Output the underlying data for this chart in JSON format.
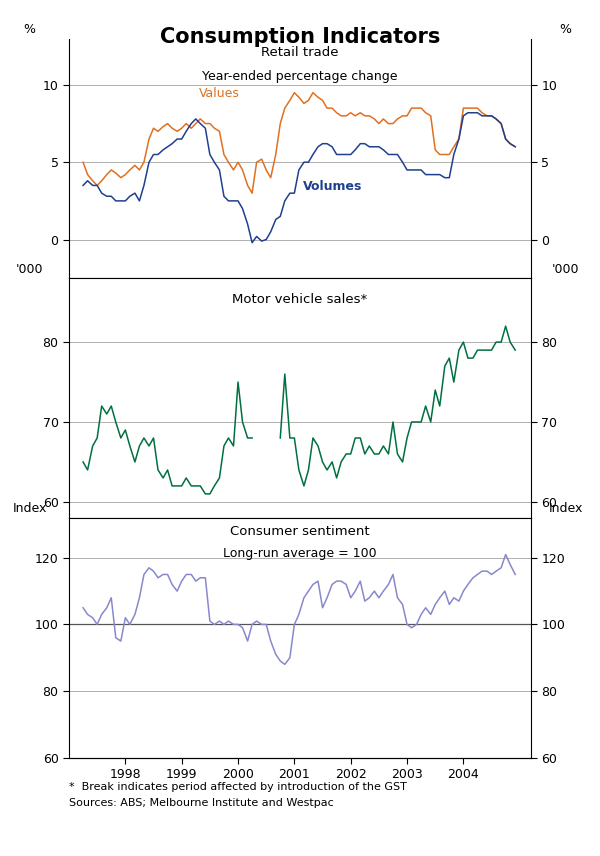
{
  "title": "Consumption Indicators",
  "title_fontsize": 15,
  "title_fontweight": "bold",
  "background_color": "#ffffff",
  "panel1": {
    "title_line1": "Retail trade",
    "title_line2": "Year-ended percentage change",
    "ylabel_left": "%",
    "ylabel_right": "%",
    "ylim": [
      -2.5,
      13
    ],
    "yticks": [
      0,
      5,
      10
    ],
    "gridlines": [
      0,
      5,
      10
    ],
    "values_color": "#E07020",
    "volumes_color": "#1F3F8F",
    "values_label": "Values",
    "volumes_label": "Volumes",
    "values_x": [
      1997.25,
      1997.33,
      1997.42,
      1997.5,
      1997.58,
      1997.67,
      1997.75,
      1997.83,
      1997.92,
      1998.0,
      1998.08,
      1998.17,
      1998.25,
      1998.33,
      1998.42,
      1998.5,
      1998.58,
      1998.67,
      1998.75,
      1998.83,
      1998.92,
      1999.0,
      1999.08,
      1999.17,
      1999.25,
      1999.33,
      1999.42,
      1999.5,
      1999.58,
      1999.67,
      1999.75,
      1999.83,
      1999.92,
      2000.0,
      2000.08,
      2000.17,
      2000.25,
      2000.33,
      2000.42,
      2000.5,
      2000.58,
      2000.67,
      2000.75,
      2000.83,
      2000.92,
      2001.0,
      2001.08,
      2001.17,
      2001.25,
      2001.33,
      2001.42,
      2001.5,
      2001.58,
      2001.67,
      2001.75,
      2001.83,
      2001.92,
      2002.0,
      2002.08,
      2002.17,
      2002.25,
      2002.33,
      2002.42,
      2002.5,
      2002.58,
      2002.67,
      2002.75,
      2002.83,
      2002.92,
      2003.0,
      2003.08,
      2003.17,
      2003.25,
      2003.33,
      2003.42,
      2003.5,
      2003.58,
      2003.67,
      2003.75,
      2003.83,
      2003.92,
      2004.0,
      2004.08,
      2004.17,
      2004.25,
      2004.33,
      2004.42,
      2004.5,
      2004.58,
      2004.67,
      2004.75,
      2004.83,
      2004.92
    ],
    "values_y": [
      5.0,
      4.2,
      3.8,
      3.5,
      3.8,
      4.2,
      4.5,
      4.3,
      4.0,
      4.2,
      4.5,
      4.8,
      4.5,
      5.0,
      6.5,
      7.2,
      7.0,
      7.3,
      7.5,
      7.2,
      7.0,
      7.2,
      7.5,
      7.2,
      7.5,
      7.8,
      7.5,
      7.5,
      7.2,
      7.0,
      5.5,
      5.0,
      4.5,
      5.0,
      4.5,
      3.5,
      3.0,
      5.0,
      5.2,
      4.5,
      4.0,
      5.5,
      7.5,
      8.5,
      9.0,
      9.5,
      9.2,
      8.8,
      9.0,
      9.5,
      9.2,
      9.0,
      8.5,
      8.5,
      8.2,
      8.0,
      8.0,
      8.2,
      8.0,
      8.2,
      8.0,
      8.0,
      7.8,
      7.5,
      7.8,
      7.5,
      7.5,
      7.8,
      8.0,
      8.0,
      8.5,
      8.5,
      8.5,
      8.2,
      8.0,
      5.8,
      5.5,
      5.5,
      5.5,
      6.0,
      6.5,
      8.5,
      8.5,
      8.5,
      8.5,
      8.2,
      8.0,
      8.0,
      7.8,
      7.5,
      6.5,
      6.2,
      6.0
    ],
    "volumes_x": [
      1997.25,
      1997.33,
      1997.42,
      1997.5,
      1997.58,
      1997.67,
      1997.75,
      1997.83,
      1997.92,
      1998.0,
      1998.08,
      1998.17,
      1998.25,
      1998.33,
      1998.42,
      1998.5,
      1998.58,
      1998.67,
      1998.75,
      1998.83,
      1998.92,
      1999.0,
      1999.08,
      1999.17,
      1999.25,
      1999.33,
      1999.42,
      1999.5,
      1999.58,
      1999.67,
      1999.75,
      1999.83,
      1999.92,
      2000.0,
      2000.08,
      2000.17,
      2000.25,
      2000.33,
      2000.42,
      2000.5,
      2000.58,
      2000.67,
      2000.75,
      2000.83,
      2000.92,
      2001.0,
      2001.08,
      2001.17,
      2001.25,
      2001.33,
      2001.42,
      2001.5,
      2001.58,
      2001.67,
      2001.75,
      2001.83,
      2001.92,
      2002.0,
      2002.08,
      2002.17,
      2002.25,
      2002.33,
      2002.42,
      2002.5,
      2002.58,
      2002.67,
      2002.75,
      2002.83,
      2002.92,
      2003.0,
      2003.08,
      2003.17,
      2003.25,
      2003.33,
      2003.42,
      2003.5,
      2003.58,
      2003.67,
      2003.75,
      2003.83,
      2003.92,
      2004.0,
      2004.08,
      2004.17,
      2004.25,
      2004.33,
      2004.42,
      2004.5,
      2004.58,
      2004.67,
      2004.75,
      2004.83,
      2004.92
    ],
    "volumes_y": [
      3.5,
      3.8,
      3.5,
      3.5,
      3.0,
      2.8,
      2.8,
      2.5,
      2.5,
      2.5,
      2.8,
      3.0,
      2.5,
      3.5,
      5.0,
      5.5,
      5.5,
      5.8,
      6.0,
      6.2,
      6.5,
      6.5,
      7.0,
      7.5,
      7.8,
      7.5,
      7.2,
      5.5,
      5.0,
      4.5,
      2.8,
      2.5,
      2.5,
      2.5,
      2.0,
      1.0,
      -0.2,
      0.2,
      -0.1,
      0.0,
      0.5,
      1.3,
      1.5,
      2.5,
      3.0,
      3.0,
      4.5,
      5.0,
      5.0,
      5.5,
      6.0,
      6.2,
      6.2,
      6.0,
      5.5,
      5.5,
      5.5,
      5.5,
      5.8,
      6.2,
      6.2,
      6.0,
      6.0,
      6.0,
      5.8,
      5.5,
      5.5,
      5.5,
      5.0,
      4.5,
      4.5,
      4.5,
      4.5,
      4.2,
      4.2,
      4.2,
      4.2,
      4.0,
      4.0,
      5.5,
      6.5,
      8.0,
      8.2,
      8.2,
      8.2,
      8.0,
      8.0,
      8.0,
      7.8,
      7.5,
      6.5,
      6.2,
      6.0
    ]
  },
  "panel2": {
    "title_line1": "Motor vehicle sales*",
    "ylabel_left": "'000",
    "ylabel_right": "'000",
    "ylim": [
      58,
      88
    ],
    "yticks": [
      60,
      70,
      80
    ],
    "gridlines": [
      60,
      70,
      80
    ],
    "line_color": "#007040",
    "seg1_x": [
      1997.25,
      1997.33,
      1997.42,
      1997.5,
      1997.58,
      1997.67,
      1997.75,
      1997.83,
      1997.92,
      1998.0,
      1998.08,
      1998.17,
      1998.25,
      1998.33,
      1998.42,
      1998.5,
      1998.58,
      1998.67,
      1998.75,
      1998.83,
      1998.92,
      1999.0,
      1999.08,
      1999.17,
      1999.25,
      1999.33,
      1999.42,
      1999.5,
      1999.58,
      1999.67,
      1999.75,
      1999.83,
      1999.92,
      2000.0,
      2000.08,
      2000.17,
      2000.25
    ],
    "seg1_y": [
      65,
      64,
      67,
      68,
      72,
      71,
      72,
      70,
      68,
      69,
      67,
      65,
      67,
      68,
      67,
      68,
      64,
      63,
      64,
      62,
      62,
      62,
      63,
      62,
      62,
      62,
      61,
      61,
      62,
      63,
      67,
      68,
      67,
      75,
      70,
      68,
      68
    ],
    "seg2_x": [
      2000.75,
      2000.83,
      2000.92,
      2001.0,
      2001.08,
      2001.17,
      2001.25,
      2001.33,
      2001.42,
      2001.5,
      2001.58,
      2001.67,
      2001.75,
      2001.83,
      2001.92,
      2002.0,
      2002.08,
      2002.17,
      2002.25,
      2002.33,
      2002.42,
      2002.5,
      2002.58,
      2002.67,
      2002.75,
      2002.83,
      2002.92,
      2003.0,
      2003.08,
      2003.17,
      2003.25,
      2003.33,
      2003.42,
      2003.5,
      2003.58,
      2003.67,
      2003.75,
      2003.83,
      2003.92,
      2004.0,
      2004.08,
      2004.17,
      2004.25,
      2004.33,
      2004.42,
      2004.5,
      2004.58,
      2004.67,
      2004.75,
      2004.83,
      2004.92
    ],
    "seg2_y": [
      68,
      76,
      68,
      68,
      64,
      62,
      64,
      68,
      67,
      65,
      64,
      65,
      63,
      65,
      66,
      66,
      68,
      68,
      66,
      67,
      66,
      66,
      67,
      66,
      70,
      66,
      65,
      68,
      70,
      70,
      70,
      72,
      70,
      74,
      72,
      77,
      78,
      75,
      79,
      80,
      78,
      78,
      79,
      79,
      79,
      79,
      80,
      80,
      82,
      80,
      79
    ]
  },
  "panel3": {
    "title_line1": "Consumer sentiment",
    "title_line2": "Long-run average = 100",
    "ylabel_left": "Index",
    "ylabel_right": "Index",
    "ylim": [
      60,
      132
    ],
    "yticks": [
      60,
      80,
      100,
      120
    ],
    "gridlines": [
      80,
      100,
      120
    ],
    "hline_y": 100,
    "line_color": "#8888CC",
    "x": [
      1997.25,
      1997.33,
      1997.42,
      1997.5,
      1997.58,
      1997.67,
      1997.75,
      1997.83,
      1997.92,
      1998.0,
      1998.08,
      1998.17,
      1998.25,
      1998.33,
      1998.42,
      1998.5,
      1998.58,
      1998.67,
      1998.75,
      1998.83,
      1998.92,
      1999.0,
      1999.08,
      1999.17,
      1999.25,
      1999.33,
      1999.42,
      1999.5,
      1999.58,
      1999.67,
      1999.75,
      1999.83,
      1999.92,
      2000.0,
      2000.08,
      2000.17,
      2000.25,
      2000.33,
      2000.42,
      2000.5,
      2000.58,
      2000.67,
      2000.75,
      2000.83,
      2000.92,
      2001.0,
      2001.08,
      2001.17,
      2001.25,
      2001.33,
      2001.42,
      2001.5,
      2001.58,
      2001.67,
      2001.75,
      2001.83,
      2001.92,
      2002.0,
      2002.08,
      2002.17,
      2002.25,
      2002.33,
      2002.42,
      2002.5,
      2002.58,
      2002.67,
      2002.75,
      2002.83,
      2002.92,
      2003.0,
      2003.08,
      2003.17,
      2003.25,
      2003.33,
      2003.42,
      2003.5,
      2003.58,
      2003.67,
      2003.75,
      2003.83,
      2003.92,
      2004.0,
      2004.08,
      2004.17,
      2004.25,
      2004.33,
      2004.42,
      2004.5,
      2004.58,
      2004.67,
      2004.75,
      2004.83,
      2004.92
    ],
    "y": [
      105,
      103,
      102,
      100,
      103,
      105,
      108,
      96,
      95,
      102,
      100,
      103,
      108,
      115,
      117,
      116,
      114,
      115,
      115,
      112,
      110,
      113,
      115,
      115,
      113,
      114,
      114,
      101,
      100,
      101,
      100,
      101,
      100,
      100,
      99,
      95,
      100,
      101,
      100,
      100,
      95,
      91,
      89,
      88,
      90,
      100,
      103,
      108,
      110,
      112,
      113,
      105,
      108,
      112,
      113,
      113,
      112,
      108,
      110,
      113,
      107,
      108,
      110,
      108,
      110,
      112,
      115,
      108,
      106,
      100,
      99,
      100,
      103,
      105,
      103,
      106,
      108,
      110,
      106,
      108,
      107,
      110,
      112,
      114,
      115,
      116,
      116,
      115,
      116,
      117,
      121,
      118,
      115
    ]
  },
  "xtick_years": [
    1998,
    1999,
    2000,
    2001,
    2002,
    2003,
    2004
  ],
  "xlim": [
    1997.0,
    2005.2
  ],
  "footnote_line1": "*  Break indicates period affected by introduction of the GST",
  "footnote_line2": "Sources: ABS; Melbourne Institute and Westpac"
}
